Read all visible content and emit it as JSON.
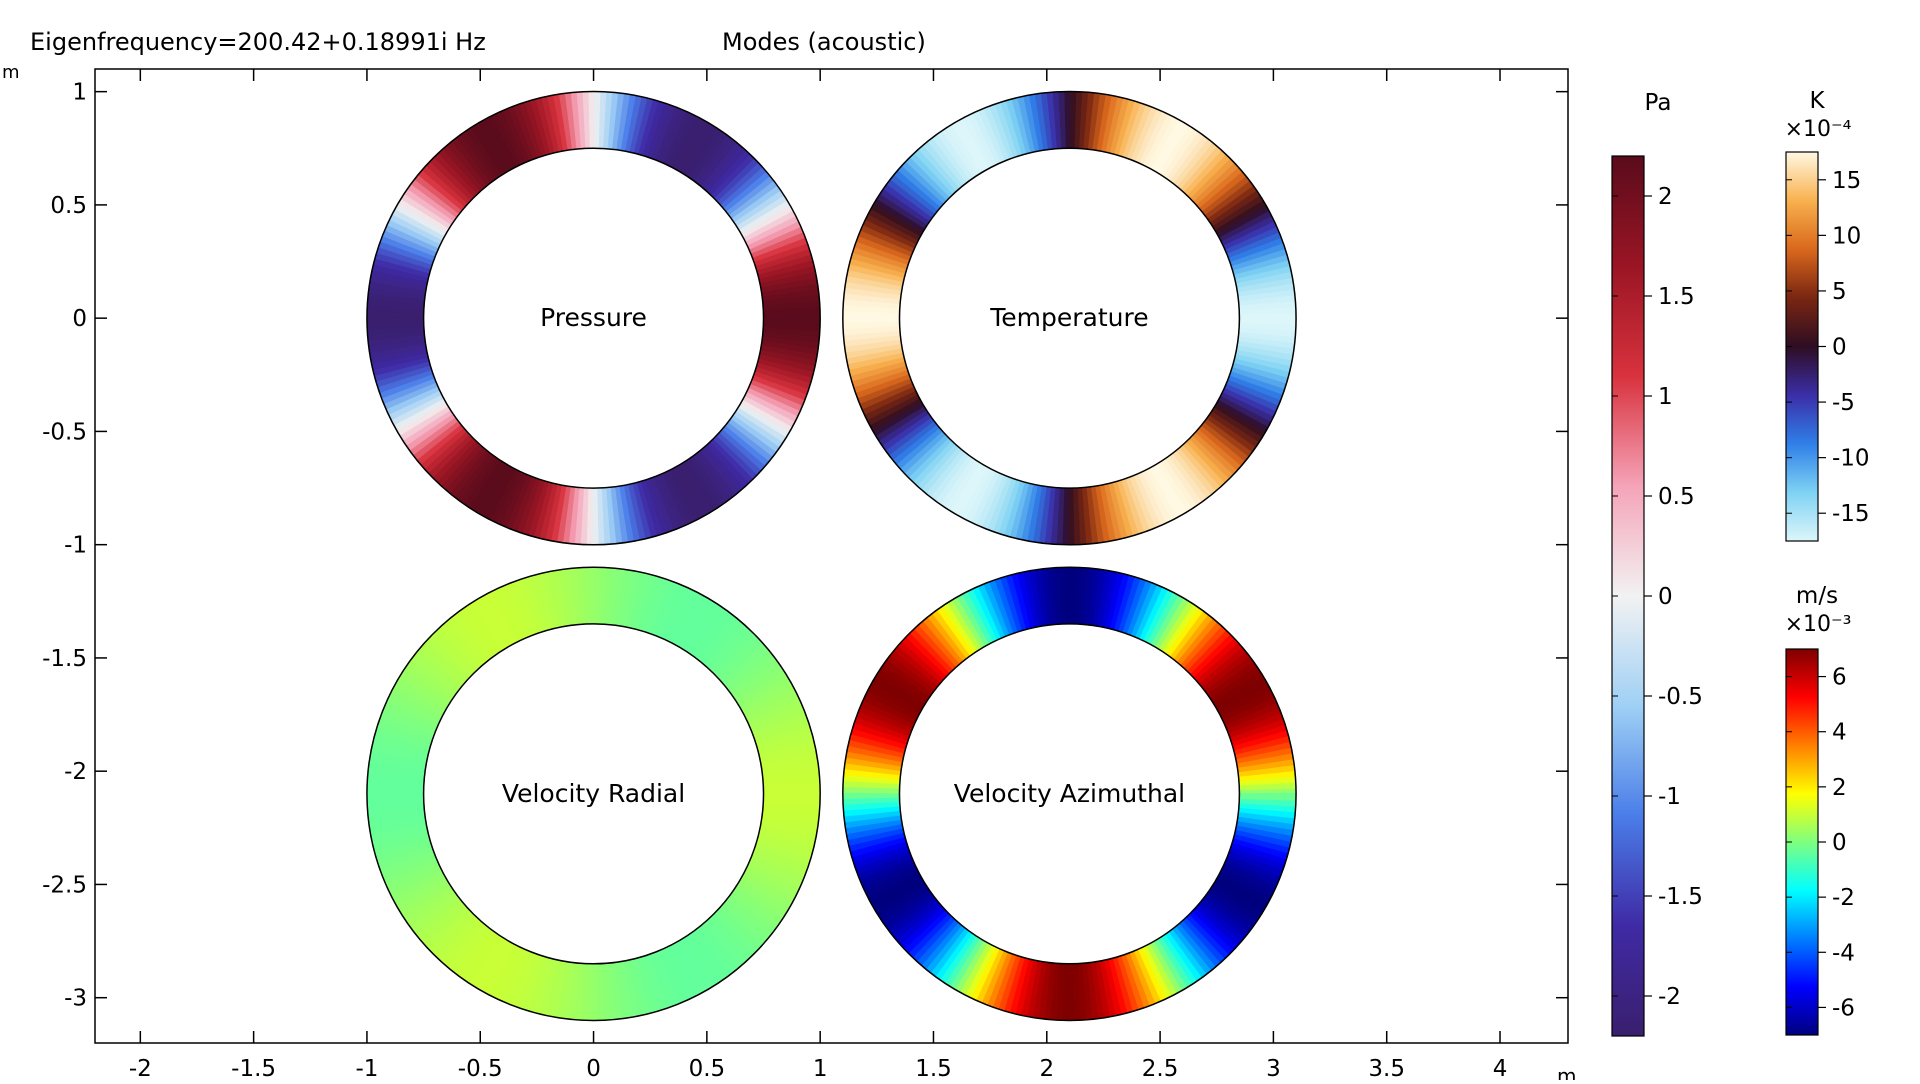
{
  "header": {
    "eigenfrequency_label": "Eigenfrequency=200.42+0.18991i Hz",
    "title": "Modes (acoustic)"
  },
  "axes": {
    "x_unit": "m",
    "y_unit": "m",
    "xlim": [
      -2.2,
      4.3
    ],
    "ylim": [
      -3.2,
      1.1
    ],
    "x_ticks": [
      {
        "value": -2,
        "label": "-2"
      },
      {
        "value": -1.5,
        "label": "-1.5"
      },
      {
        "value": -1,
        "label": "-1"
      },
      {
        "value": -0.5,
        "label": "-0.5"
      },
      {
        "value": 0,
        "label": "0"
      },
      {
        "value": 0.5,
        "label": "0.5"
      },
      {
        "value": 1,
        "label": "1"
      },
      {
        "value": 1.5,
        "label": "1.5"
      },
      {
        "value": 2,
        "label": "2"
      },
      {
        "value": 2.5,
        "label": "2.5"
      },
      {
        "value": 3,
        "label": "3"
      },
      {
        "value": 3.5,
        "label": "3.5"
      },
      {
        "value": 4,
        "label": "4"
      }
    ],
    "y_ticks": [
      {
        "value": 1,
        "label": "1"
      },
      {
        "value": 0.5,
        "label": "0.5"
      },
      {
        "value": 0,
        "label": "0"
      },
      {
        "value": -0.5,
        "label": "-0.5"
      },
      {
        "value": -1,
        "label": "-1"
      },
      {
        "value": -1.5,
        "label": "-1.5"
      },
      {
        "value": -2,
        "label": "-2"
      },
      {
        "value": -2.5,
        "label": "-2.5"
      },
      {
        "value": -3,
        "label": "-3"
      }
    ]
  },
  "rings": [
    {
      "id": "pressure",
      "label": "Pressure",
      "cx": 0,
      "cy": 0,
      "r_outer": 1.0,
      "r_inner": 0.75,
      "field": "cos3",
      "amplitude": 2.2,
      "phase_deg": 0,
      "colormap": "wave"
    },
    {
      "id": "temperature",
      "label": "Temperature",
      "cx": 2.1,
      "cy": 0,
      "r_outer": 1.0,
      "r_inner": 0.75,
      "field": "cos3",
      "amplitude": 17,
      "phase_deg": 180,
      "colormap": "thermal"
    },
    {
      "id": "velocity-radial",
      "label": "Velocity Radial",
      "cx": 0,
      "cy": -2.1,
      "r_outer": 1.0,
      "r_inner": 0.75,
      "field": "cos3",
      "amplitude": 0.7,
      "phase_deg": 0,
      "colormap": "rainbow",
      "range": [
        -7,
        7
      ]
    },
    {
      "id": "velocity-azimuthal",
      "label": "Velocity Azimuthal",
      "cx": 2.1,
      "cy": -2.1,
      "r_outer": 1.0,
      "r_inner": 0.75,
      "field": "sin3",
      "amplitude": 7,
      "phase_deg": 0,
      "colormap": "rainbow",
      "range": [
        -7,
        7
      ]
    }
  ],
  "legends": {
    "pressure": {
      "unit": "Pa",
      "exponent": "",
      "colormap": "wave",
      "range": [
        -2.2,
        2.2
      ],
      "ticks": [
        {
          "value": 2,
          "label": "2"
        },
        {
          "value": 1.5,
          "label": "1.5"
        },
        {
          "value": 1,
          "label": "1"
        },
        {
          "value": 0.5,
          "label": "0.5"
        },
        {
          "value": 0,
          "label": "0"
        },
        {
          "value": -0.5,
          "label": "-0.5"
        },
        {
          "value": -1,
          "label": "-1"
        },
        {
          "value": -1.5,
          "label": "-1.5"
        },
        {
          "value": -2,
          "label": "-2"
        }
      ]
    },
    "temperature": {
      "unit": "K",
      "exponent": "×10⁻⁴",
      "colormap": "thermal",
      "range": [
        -17.5,
        17.5
      ],
      "ticks": [
        {
          "value": 15,
          "label": "15"
        },
        {
          "value": 10,
          "label": "10"
        },
        {
          "value": 5,
          "label": "5"
        },
        {
          "value": 0,
          "label": "0"
        },
        {
          "value": -5,
          "label": "-5"
        },
        {
          "value": -10,
          "label": "-10"
        },
        {
          "value": -15,
          "label": "-15"
        }
      ]
    },
    "velocity": {
      "unit": "m/s",
      "exponent": "×10⁻³",
      "colormap": "rainbow",
      "range": [
        -7,
        7
      ],
      "ticks": [
        {
          "value": 6,
          "label": "6"
        },
        {
          "value": 4,
          "label": "4"
        },
        {
          "value": 2,
          "label": "2"
        },
        {
          "value": 0,
          "label": "0"
        },
        {
          "value": -2,
          "label": "-2"
        },
        {
          "value": -4,
          "label": "-4"
        },
        {
          "value": -6,
          "label": "-6"
        }
      ]
    }
  },
  "colormaps": {
    "wave": [
      "#3a1f6e",
      "#3f2aa5",
      "#4a7de8",
      "#9fd0f5",
      "#f2f2f2",
      "#f5a3b8",
      "#d8323d",
      "#9a1524",
      "#5a0b1c"
    ],
    "thermal": [
      "#dcf6fa",
      "#7ed2f3",
      "#2f7fe8",
      "#3b2ea8",
      "#2e0d22",
      "#7a2612",
      "#d9681c",
      "#f8b14e",
      "#fff8e2"
    ],
    "rainbow": [
      "#00007f",
      "#0000ff",
      "#007fff",
      "#00ffff",
      "#7fff7f",
      "#ffff00",
      "#ff7f00",
      "#ff0000",
      "#7f0000"
    ]
  }
}
